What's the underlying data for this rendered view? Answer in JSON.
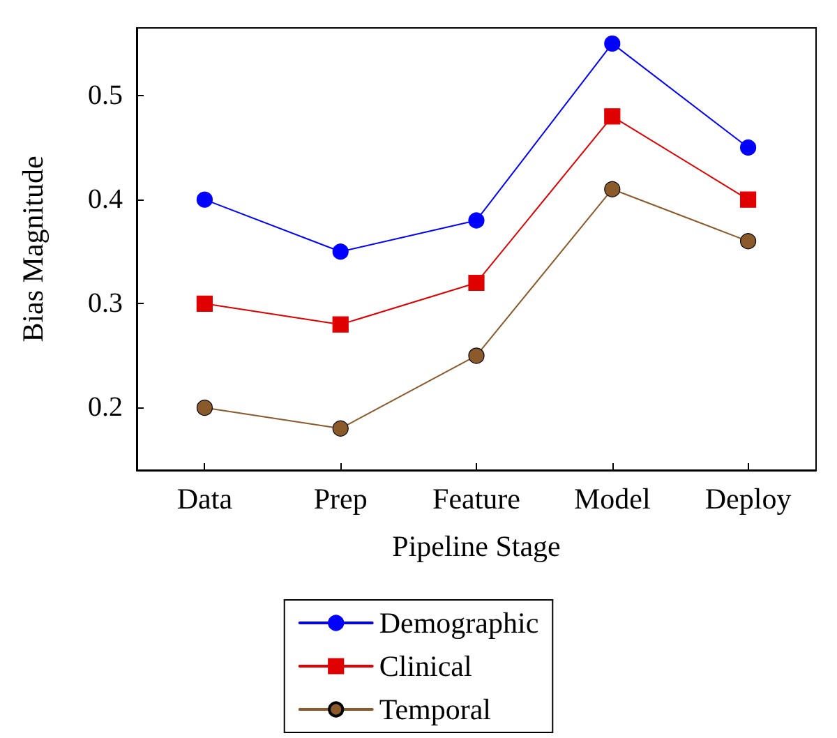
{
  "chart_data": {
    "type": "line",
    "xlabel": "Pipeline Stage",
    "ylabel": "Bias Magnitude",
    "categories": [
      "Data",
      "Prep",
      "Feature",
      "Model",
      "Deploy"
    ],
    "series": [
      {
        "name": "Demographic",
        "color": "#0000ff",
        "marker": "circle",
        "values": [
          0.4,
          0.35,
          0.38,
          0.55,
          0.45
        ]
      },
      {
        "name": "Clinical",
        "color": "#e00000",
        "marker": "square",
        "values": [
          0.3,
          0.28,
          0.32,
          0.48,
          0.4
        ]
      },
      {
        "name": "Temporal",
        "color": "#8b5a2b",
        "marker": "circle",
        "values": [
          0.2,
          0.18,
          0.25,
          0.41,
          0.36
        ]
      }
    ],
    "ylim": [
      0.14,
      0.565
    ],
    "yticks": [
      0.2,
      0.3,
      0.4,
      0.5
    ],
    "grid": false,
    "legend": "bottom",
    "line_style": "solid"
  }
}
